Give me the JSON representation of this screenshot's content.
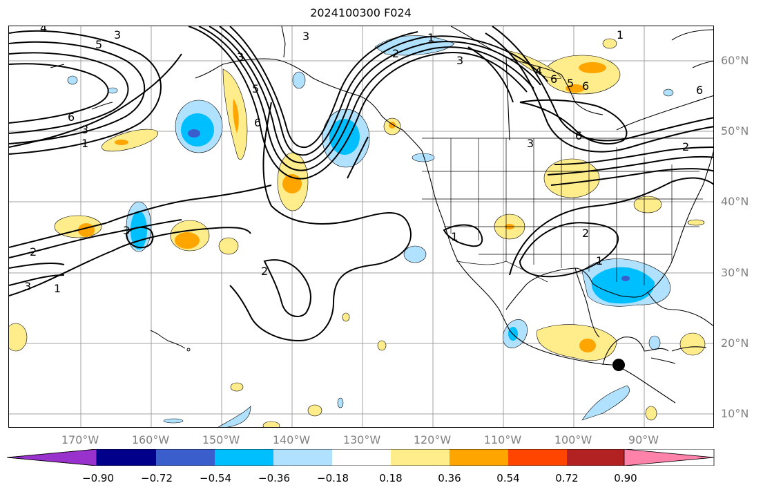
{
  "title": "2024100300 F024",
  "lat_labels": [
    "60°N",
    "50°N",
    "40°N",
    "30°N",
    "20°N",
    "10°N"
  ],
  "lon_labels": [
    "170°W",
    "160°W",
    "150°W",
    "140°W",
    "130°W",
    "120°W",
    "110°W",
    "100°W",
    "90°W"
  ],
  "colorbar": {
    "ticks": [
      "−0.90",
      "−0.72",
      "−0.54",
      "−0.36",
      "−0.18",
      "0.18",
      "0.36",
      "0.54",
      "0.72",
      "0.90"
    ],
    "colors": [
      "#9932cc",
      "#00008b",
      "#3a5fcd",
      "#00bfff",
      "#b0e2ff",
      "#ffffff",
      "#ffec8b",
      "#ffa500",
      "#ff4500",
      "#b22222",
      "#ff82ab"
    ]
  },
  "contour_labels": [
    "4",
    "5",
    "3",
    "6",
    "3",
    "1",
    "3",
    "5",
    "6",
    "3",
    "1",
    "2",
    "3",
    "3",
    "1",
    "2",
    "1",
    "2",
    "1",
    "3",
    "4",
    "5",
    "6",
    "6",
    "6",
    "3",
    "6",
    "2",
    "1",
    "2"
  ],
  "map": {
    "extent": {
      "lon_min": -180,
      "lon_max": -80,
      "lat_min": 8,
      "lat_max": 65
    },
    "marker": {
      "lon": -93.6,
      "lat": 17.0,
      "label": ""
    }
  }
}
